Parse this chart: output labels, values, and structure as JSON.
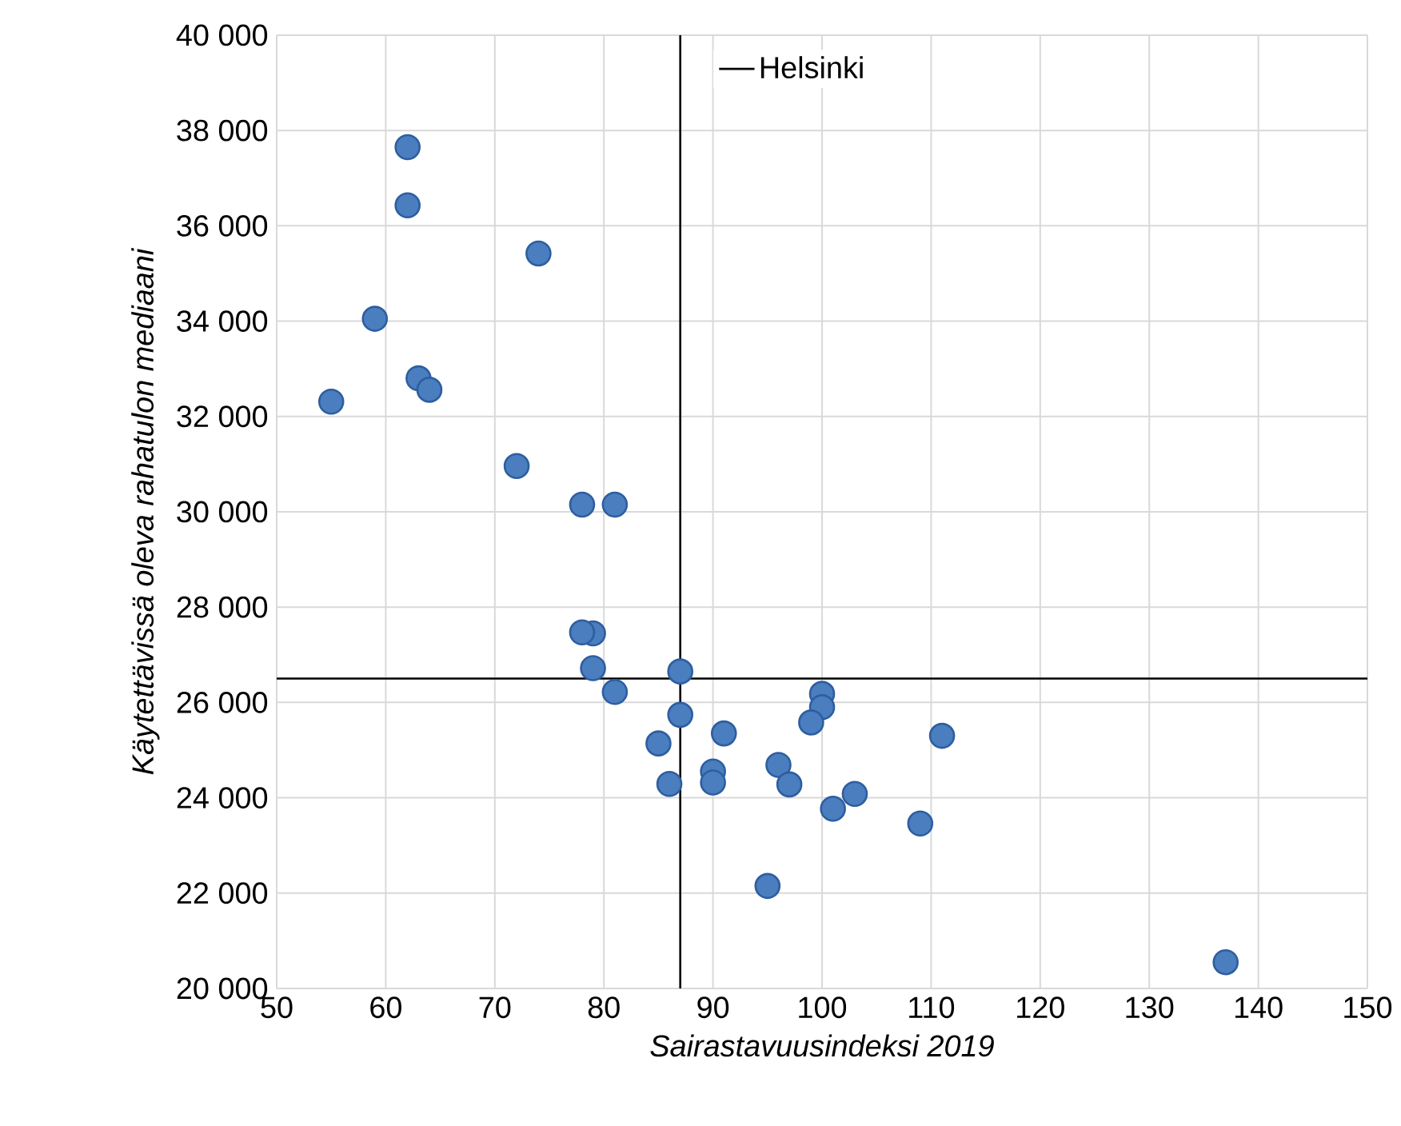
{
  "chart_data": {
    "type": "scatter",
    "xlabel": "Sairastavuusindeksi 2019",
    "ylabel": "Käytettävissä oleva rahatulon mediaani",
    "series": [
      {
        "color": "#4a7ebf",
        "x": [
          62,
          62,
          74,
          59,
          63,
          64,
          55,
          72,
          78,
          81,
          79,
          78,
          79,
          81,
          87,
          87,
          85,
          91,
          86,
          90,
          90,
          96,
          97,
          100,
          100,
          99,
          101,
          103,
          109,
          111,
          95,
          137
        ],
        "values": [
          37650,
          36430,
          35420,
          34050,
          32800,
          32560,
          32310,
          30960,
          30150,
          30150,
          27450,
          27470,
          26720,
          26220,
          26650,
          25740,
          25140,
          25350,
          24290,
          24550,
          24320,
          24690,
          24280,
          26180,
          25900,
          25580,
          23770,
          24080,
          23460,
          25300,
          22150,
          20550
        ]
      }
    ],
    "xlim": [
      50,
      150
    ],
    "xticks": [
      50,
      60,
      70,
      80,
      90,
      100,
      110,
      120,
      130,
      140,
      150
    ],
    "ylim": [
      20000,
      40000
    ],
    "yticks": [
      {
        "value": 20000,
        "label": "20 000"
      },
      {
        "value": 22000,
        "label": "22 000"
      },
      {
        "value": 24000,
        "label": "24 000"
      },
      {
        "value": 26000,
        "label": "26 000"
      },
      {
        "value": 28000,
        "label": "28 000"
      },
      {
        "value": 30000,
        "label": "30 000"
      },
      {
        "value": 32000,
        "label": "32 000"
      },
      {
        "value": 34000,
        "label": "34 000"
      },
      {
        "value": 36000,
        "label": "36 000"
      },
      {
        "value": 38000,
        "label": "38 000"
      },
      {
        "value": 40000,
        "label": "40 000"
      }
    ],
    "ref_lines": [
      {
        "axis": "x",
        "value": 87,
        "label": "Helsinki",
        "color": "#000000"
      },
      {
        "axis": "y",
        "value": 26500,
        "color": "#000000"
      }
    ],
    "grid": true,
    "legend": "top",
    "marker": "circle"
  }
}
